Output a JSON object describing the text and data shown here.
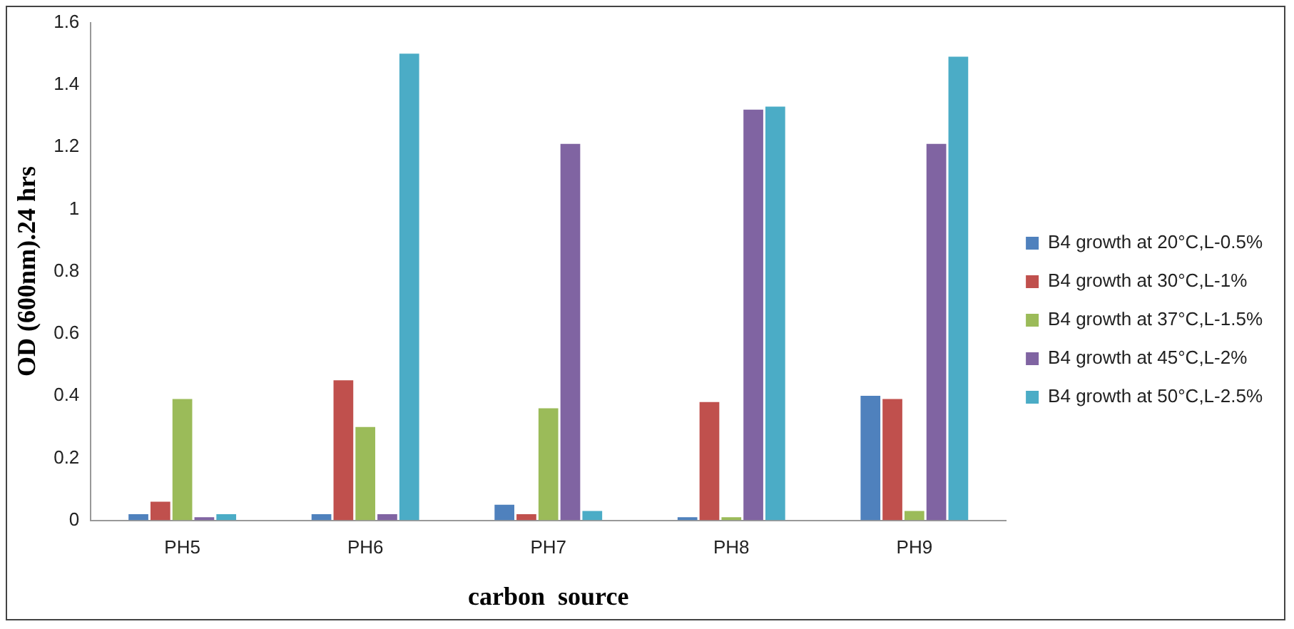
{
  "chart_data": {
    "type": "bar",
    "xlabel": "carbon  source",
    "ylabel": "OD (600nm).24 hrs",
    "categories": [
      "PH5",
      "PH6",
      "PH7",
      "PH8",
      "PH9"
    ],
    "series": [
      {
        "name": "B4 growth at 20°C,L-0.5%",
        "color": "#4f81bd",
        "values": [
          0.02,
          0.02,
          0.05,
          0.01,
          0.4
        ]
      },
      {
        "name": "B4 growth at 30°C,L-1%",
        "color": "#c0504d",
        "values": [
          0.06,
          0.45,
          0.02,
          0.38,
          0.39
        ]
      },
      {
        "name": "B4 growth at 37°C,L-1.5%",
        "color": "#9bbb59",
        "values": [
          0.39,
          0.3,
          0.36,
          0.01,
          0.03
        ]
      },
      {
        "name": "B4 growth at 45°C,L-2%",
        "color": "#8064a2",
        "values": [
          0.01,
          0.02,
          1.21,
          1.32,
          1.21
        ]
      },
      {
        "name": "B4 growth at 50°C,L-2.5%",
        "color": "#4bacc6",
        "values": [
          0.02,
          1.5,
          0.03,
          1.33,
          1.49
        ]
      }
    ],
    "ylim": [
      0,
      1.6
    ],
    "yticks": [
      0,
      0.2,
      0.4,
      0.6,
      0.8,
      1,
      1.2,
      1.4,
      1.6
    ],
    "grid": false,
    "legend": "right"
  }
}
